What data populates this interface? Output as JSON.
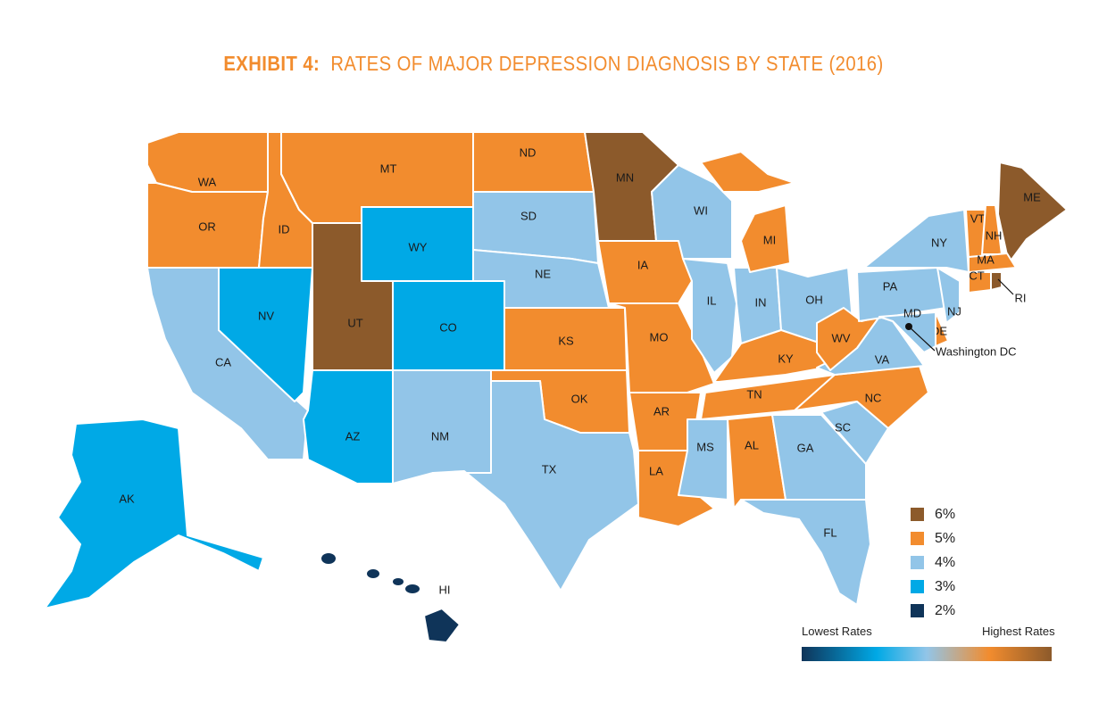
{
  "title": {
    "bold": "EXHIBIT 4:",
    "text": "RATES OF MAJOR DEPRESSION DIAGNOSIS BY STATE (2016)"
  },
  "colors": {
    "6": "#8c5a2b",
    "5": "#f28c2e",
    "4": "#92c5e8",
    "3": "#00a9e6",
    "2": "#0f3459"
  },
  "legend": {
    "items": [
      {
        "value": 6,
        "label": "6%"
      },
      {
        "value": 5,
        "label": "5%"
      },
      {
        "value": 4,
        "label": "4%"
      },
      {
        "value": 3,
        "label": "3%"
      },
      {
        "value": 2,
        "label": "2%"
      }
    ],
    "low_label": "Lowest Rates",
    "high_label": "Highest Rates"
  },
  "states": {
    "WA": 5,
    "OR": 5,
    "CA": 4,
    "NV": 3,
    "ID": 5,
    "MT": 5,
    "WY": 3,
    "UT": 6,
    "CO": 3,
    "AZ": 3,
    "NM": 4,
    "ND": 5,
    "SD": 4,
    "NE": 4,
    "KS": 5,
    "OK": 5,
    "TX": 4,
    "MN": 6,
    "IA": 5,
    "MO": 5,
    "AR": 5,
    "LA": 5,
    "WI": 4,
    "IL": 4,
    "MI": 5,
    "IN": 4,
    "OH": 4,
    "KY": 5,
    "TN": 5,
    "MS": 4,
    "AL": 5,
    "GA": 4,
    "FL": 4,
    "SC": 4,
    "NC": 5,
    "VA": 4,
    "WV": 5,
    "PA": 4,
    "NY": 4,
    "VT": 5,
    "NH": 5,
    "ME": 6,
    "MA": 5,
    "CT": 5,
    "RI": 6,
    "NJ": 4,
    "DE": 5,
    "MD": 4,
    "AK": 3,
    "HI": 2
  },
  "annotations": {
    "dc": "Washington DC",
    "ri": "RI"
  }
}
